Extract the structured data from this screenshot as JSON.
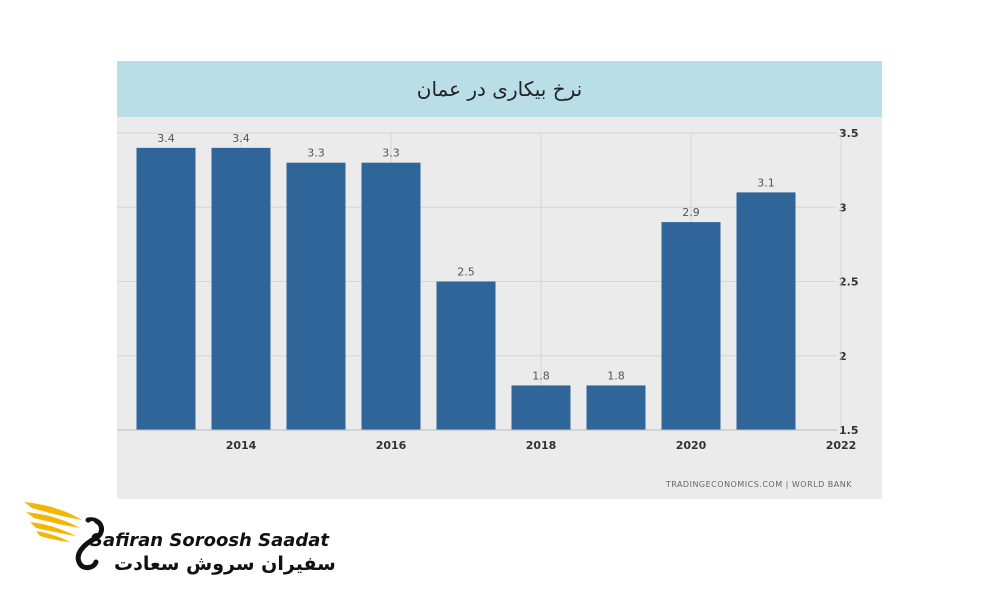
{
  "title": "نرخ بیکاری در عمان",
  "source": "TRADINGECONOMICS.COM | WORLD BANK",
  "brand": {
    "name_en": "Safiran Soroosh Saadat",
    "name_fa": "سفیران سروش سعادت"
  },
  "colors": {
    "bar": "#2f6598",
    "title_band": "#b9dee8",
    "panel": "#ebebeb",
    "logo_gold": "#f2b705"
  },
  "chart_data": {
    "type": "bar",
    "title": "نرخ بیکاری در عمان",
    "categories": [
      "2013",
      "2014",
      "2015",
      "2016",
      "2017",
      "2018",
      "2019",
      "2020",
      "2021"
    ],
    "values": [
      3.4,
      3.4,
      3.3,
      3.3,
      2.5,
      1.8,
      1.8,
      2.9,
      3.1
    ],
    "data_labels": [
      "3.4",
      "3.4",
      "3.3",
      "3.3",
      "2.5",
      "1.8",
      "1.8",
      "2.9",
      "3.1"
    ],
    "x_ticks": [
      "2014",
      "2016",
      "2018",
      "2020",
      "2022"
    ],
    "y_ticks": [
      "1.5",
      "2",
      "2.5",
      "3",
      "3.5"
    ],
    "ylim": [
      1.5,
      3.5
    ],
    "y_axis_side": "right",
    "grid": true,
    "legend": "none"
  }
}
